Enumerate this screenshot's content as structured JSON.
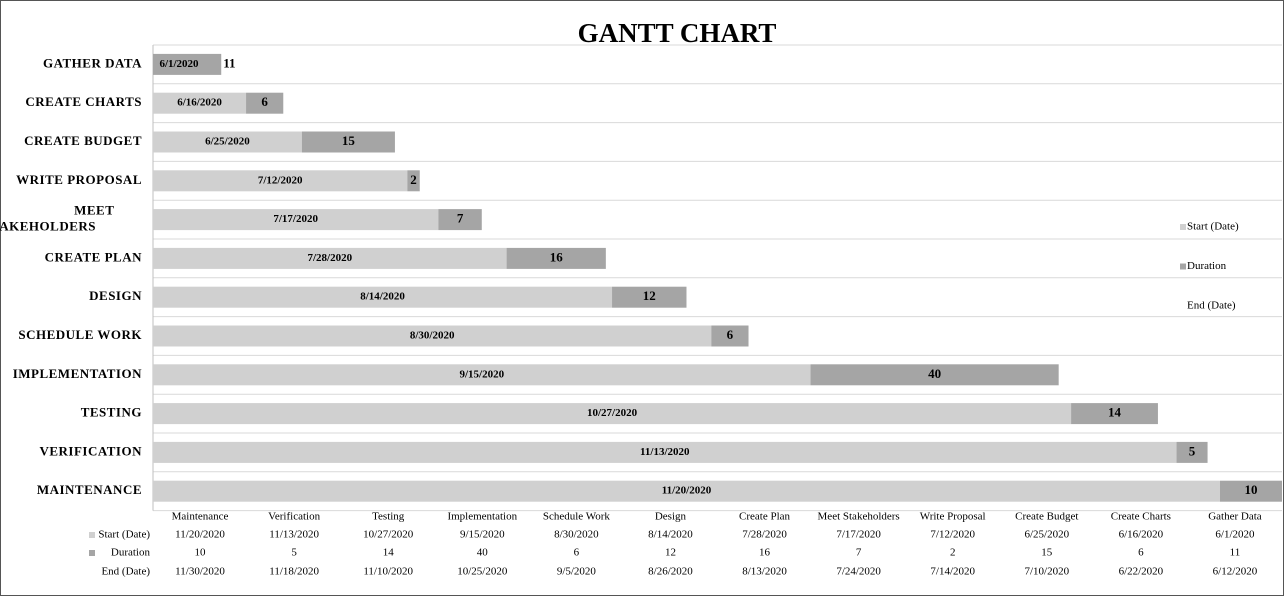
{
  "chart_data": {
    "type": "gantt",
    "title": "GANTT CHART",
    "categories": [
      "GATHER DATA",
      "CREATE CHARTS",
      "CREATE BUDGET",
      "WRITE PROPOSAL",
      "MEET STAKEHOLDERS",
      "CREATE PLAN",
      "DESIGN",
      "SCHEDULE WORK",
      "IMPLEMENTATION",
      "TESTING",
      "VERIFICATION",
      "MAINTENANCE"
    ],
    "table_categories": [
      "Maintenance",
      "Verification",
      "Testing",
      "Implementation",
      "Schedule Work",
      "Design",
      "Create Plan",
      "Meet Stakeholders",
      "Write Proposal",
      "Create Budget",
      "Create Charts",
      "Gather Data"
    ],
    "series": [
      {
        "name": "Start (Date)",
        "color": "#d0d0d0",
        "values": [
          "6/1/2020",
          "6/16/2020",
          "6/25/2020",
          "7/12/2020",
          "7/17/2020",
          "7/28/2020",
          "8/14/2020",
          "8/30/2020",
          "9/15/2020",
          "10/27/2020",
          "11/13/2020",
          "11/20/2020"
        ]
      },
      {
        "name": "Duration",
        "color": "#a5a5a5",
        "values": [
          11,
          6,
          15,
          2,
          7,
          16,
          12,
          6,
          40,
          14,
          5,
          10
        ]
      },
      {
        "name": "End (Date)",
        "color": "none",
        "values": [
          "6/12/2020",
          "6/22/2020",
          "7/10/2020",
          "7/14/2020",
          "7/24/2020",
          "8/13/2020",
          "8/26/2020",
          "9/5/2020",
          "10/25/2020",
          "11/10/2020",
          "11/18/2020",
          "11/30/2020"
        ]
      }
    ],
    "xlim": [
      "6/1/2020",
      "11/30/2020"
    ],
    "grid": true,
    "legend": "right"
  }
}
